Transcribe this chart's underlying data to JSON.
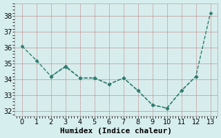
{
  "line1_x": [
    0,
    1,
    2,
    3,
    4,
    5,
    6,
    7,
    8,
    9,
    10,
    11,
    12,
    13
  ],
  "line1_y": [
    36.1,
    35.2,
    34.2,
    34.8,
    34.1,
    34.1,
    33.7,
    34.1,
    33.3,
    32.4,
    32.2,
    33.3,
    34.2,
    38.2
  ],
  "line2_x": [
    2,
    3,
    4,
    5,
    6,
    7,
    8,
    9,
    10,
    11,
    12,
    13
  ],
  "line2_y": [
    34.2,
    34.85,
    34.1,
    34.1,
    33.7,
    34.1,
    33.3,
    32.4,
    32.2,
    33.3,
    34.2,
    38.2
  ],
  "line_color": "#2E7D6E",
  "marker": "D",
  "marker_size": 2.5,
  "line_width": 1.0,
  "xlabel": "Humidex (Indice chaleur)",
  "xlim": [
    -0.5,
    13.5
  ],
  "ylim": [
    31.7,
    38.8
  ],
  "yticks": [
    32,
    33,
    34,
    35,
    36,
    37,
    38
  ],
  "xticks": [
    0,
    1,
    2,
    3,
    4,
    5,
    6,
    7,
    8,
    9,
    10,
    11,
    12,
    13
  ],
  "bg_color": "#d7eeee",
  "grid_major_color": "#c8dede",
  "grid_minor_color": "#daeaea",
  "tick_label_fontsize": 7,
  "xlabel_fontsize": 8
}
